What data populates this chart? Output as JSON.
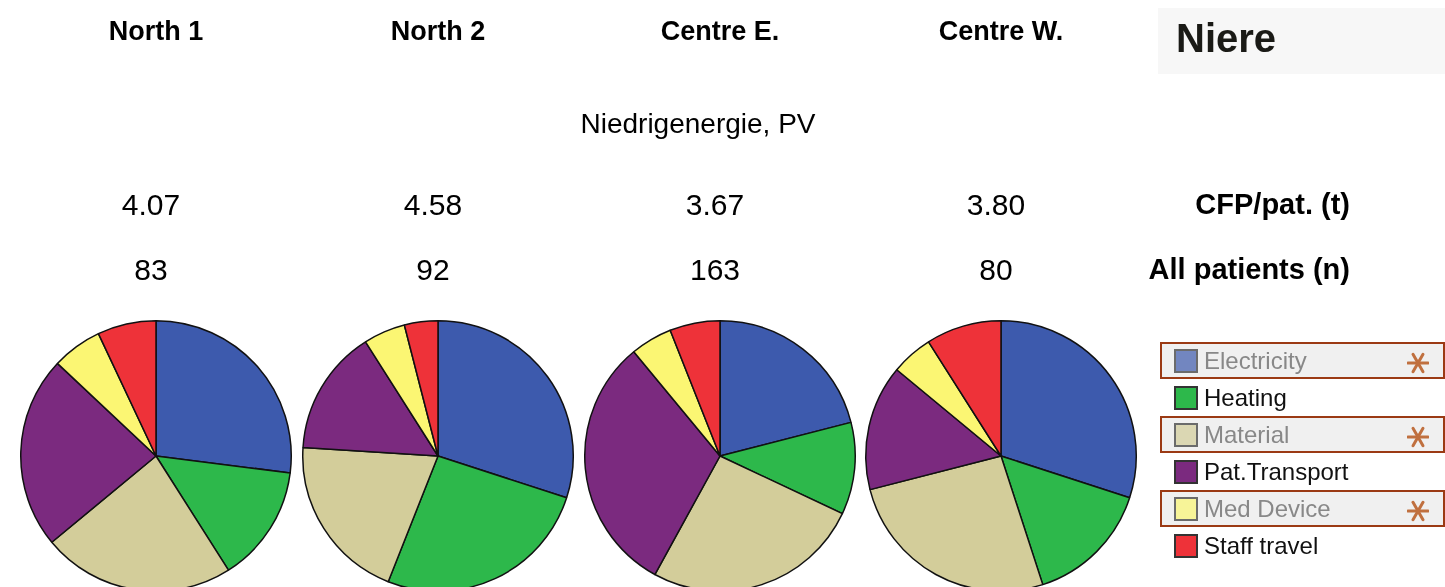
{
  "chart_data": [
    {
      "type": "pie",
      "title": "North 1",
      "annotations": [
        "4.07",
        "83"
      ],
      "categories": [
        null,
        null,
        null,
        null,
        null,
        null
      ],
      "values": [
        27,
        14,
        23,
        23,
        6,
        7
      ],
      "colors": [
        "#3d5aad",
        "#2db84b",
        "#d3cd9a",
        "#7b2a7f",
        "#fbf673",
        "#ee3239"
      ]
    },
    {
      "type": "pie",
      "title": "North 2",
      "annotations": [
        "4.58",
        "92"
      ],
      "categories": [
        null,
        null,
        null,
        null,
        null,
        null
      ],
      "values": [
        30,
        26,
        20,
        15,
        5,
        4
      ],
      "colors": [
        "#3d5aad",
        "#2db84b",
        "#d3cd9a",
        "#7b2a7f",
        "#fbf673",
        "#ee3239"
      ]
    },
    {
      "type": "pie",
      "title": "Centre E.",
      "annotations": [
        "3.67",
        "163"
      ],
      "categories": [
        null,
        null,
        null,
        null,
        null,
        null
      ],
      "values": [
        21,
        11,
        26,
        31,
        5,
        6
      ],
      "colors": [
        "#3d5aad",
        "#2db84b",
        "#d3cd9a",
        "#7b2a7f",
        "#fbf673",
        "#ee3239"
      ]
    },
    {
      "type": "pie",
      "title": "Centre W.",
      "annotations": [
        "3.80",
        "80"
      ],
      "categories": [
        "Electricity",
        "Heating",
        "Material",
        "Pat.Transport",
        "Med Device",
        "Staff travel"
      ],
      "values": [
        30,
        15,
        26,
        15,
        5,
        9
      ],
      "colors": [
        "#3d5aad",
        "#2db84b",
        "#d3cd9a",
        "#7b2a7f",
        "#fbf673",
        "#ee3239"
      ],
      "legend": "right"
    },
    {
      "type": "other",
      "title": "Niere",
      "subtitle": "Niedrigenergie, PV",
      "annotations": [
        "CFP/pat. (t)",
        "All patients (n)"
      ]
    }
  ]
}
